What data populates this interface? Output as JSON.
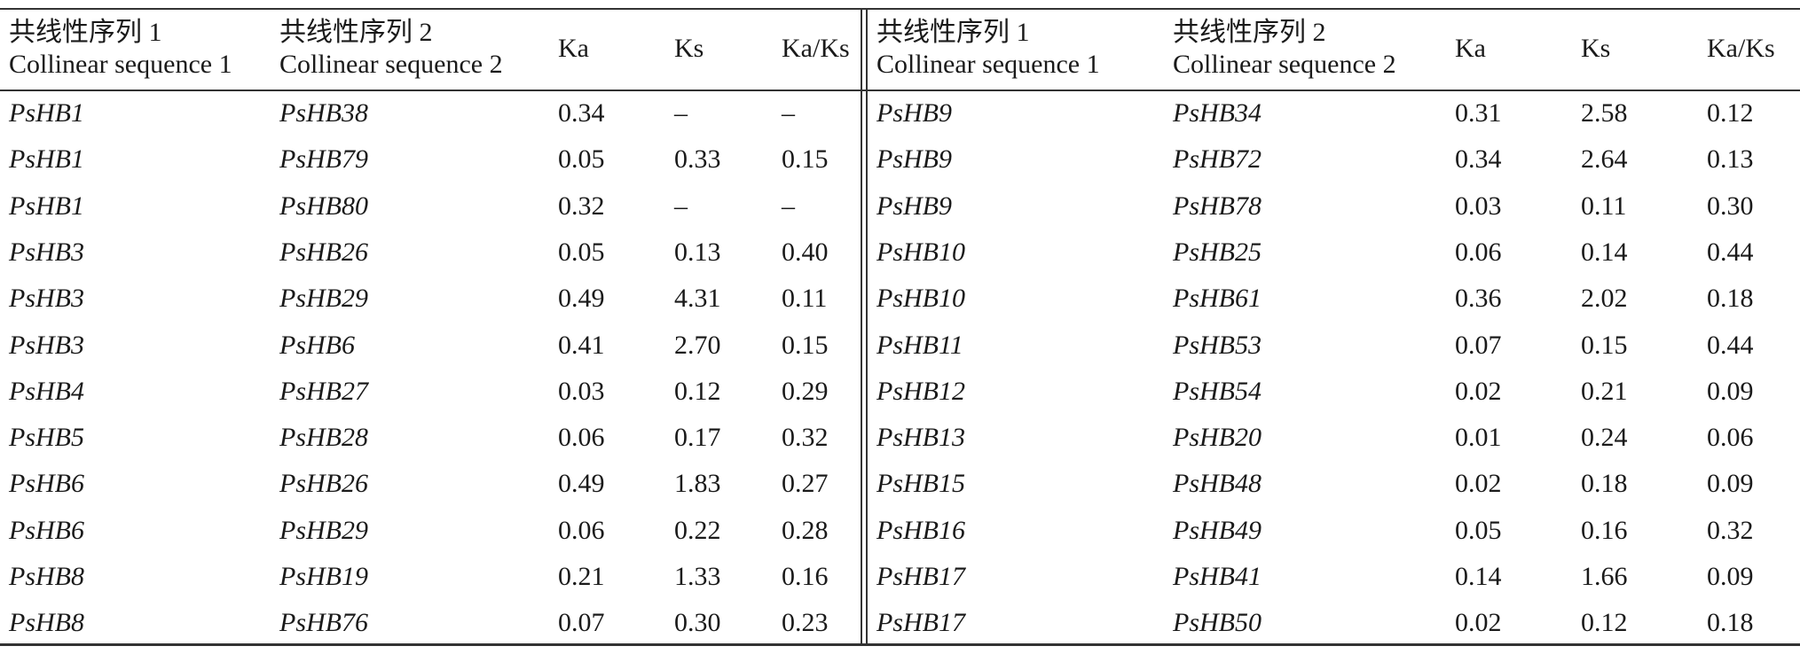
{
  "headers": {
    "left": [
      {
        "zh": "共线性序列 1",
        "en": "Collinear sequence 1"
      },
      {
        "zh": "共线性序列 2",
        "en": "Collinear sequence 2"
      },
      {
        "en": "Ka"
      },
      {
        "en": "Ks"
      },
      {
        "en": "Ka/Ks"
      }
    ],
    "right": [
      {
        "zh": "共线性序列 1",
        "en": "Collinear sequence 1"
      },
      {
        "zh": "共线性序列 2",
        "en": "Collinear sequence 2"
      },
      {
        "en": "Ka"
      },
      {
        "en": "Ks"
      },
      {
        "en": "Ka/Ks"
      }
    ]
  },
  "rows": [
    {
      "l": [
        "PsHB1",
        "PsHB38",
        "0.34",
        "–",
        "–"
      ],
      "r": [
        "PsHB9",
        "PsHB34",
        "0.31",
        "2.58",
        "0.12"
      ]
    },
    {
      "l": [
        "PsHB1",
        "PsHB79",
        "0.05",
        "0.33",
        "0.15"
      ],
      "r": [
        "PsHB9",
        "PsHB72",
        "0.34",
        "2.64",
        "0.13"
      ]
    },
    {
      "l": [
        "PsHB1",
        "PsHB80",
        "0.32",
        "–",
        "–"
      ],
      "r": [
        "PsHB9",
        "PsHB78",
        "0.03",
        "0.11",
        "0.30"
      ]
    },
    {
      "l": [
        "PsHB3",
        "PsHB26",
        "0.05",
        "0.13",
        "0.40"
      ],
      "r": [
        "PsHB10",
        "PsHB25",
        "0.06",
        "0.14",
        "0.44"
      ]
    },
    {
      "l": [
        "PsHB3",
        "PsHB29",
        "0.49",
        "4.31",
        "0.11"
      ],
      "r": [
        "PsHB10",
        "PsHB61",
        "0.36",
        "2.02",
        "0.18"
      ]
    },
    {
      "l": [
        "PsHB3",
        "PsHB6",
        "0.41",
        "2.70",
        "0.15"
      ],
      "r": [
        "PsHB11",
        "PsHB53",
        "0.07",
        "0.15",
        "0.44"
      ]
    },
    {
      "l": [
        "PsHB4",
        "PsHB27",
        "0.03",
        "0.12",
        "0.29"
      ],
      "r": [
        "PsHB12",
        "PsHB54",
        "0.02",
        "0.21",
        "0.09"
      ]
    },
    {
      "l": [
        "PsHB5",
        "PsHB28",
        "0.06",
        "0.17",
        "0.32"
      ],
      "r": [
        "PsHB13",
        "PsHB20",
        "0.01",
        "0.24",
        "0.06"
      ]
    },
    {
      "l": [
        "PsHB6",
        "PsHB26",
        "0.49",
        "1.83",
        "0.27"
      ],
      "r": [
        "PsHB15",
        "PsHB48",
        "0.02",
        "0.18",
        "0.09"
      ]
    },
    {
      "l": [
        "PsHB6",
        "PsHB29",
        "0.06",
        "0.22",
        "0.28"
      ],
      "r": [
        "PsHB16",
        "PsHB49",
        "0.05",
        "0.16",
        "0.32"
      ]
    },
    {
      "l": [
        "PsHB8",
        "PsHB19",
        "0.21",
        "1.33",
        "0.16"
      ],
      "r": [
        "PsHB17",
        "PsHB41",
        "0.14",
        "1.66",
        "0.09"
      ]
    },
    {
      "l": [
        "PsHB8",
        "PsHB76",
        "0.07",
        "0.30",
        "0.23"
      ],
      "r": [
        "PsHB17",
        "PsHB50",
        "0.02",
        "0.12",
        "0.18"
      ]
    }
  ]
}
